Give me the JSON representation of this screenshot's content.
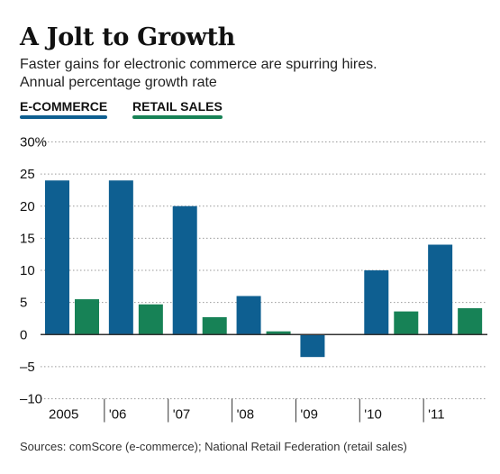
{
  "header": {
    "title": "A Jolt to Growth",
    "subtitle": "Faster gains for electronic commerce are spurring hires."
  },
  "source": "Sources: comScore (e-commerce); National Retail Federation (retail sales)",
  "colors": {
    "ecommerce": "#0e5f91",
    "retail_sales": "#178256",
    "gridline": "#9a9a9a",
    "zero_line": "#333333",
    "text": "#111111"
  },
  "chart_data": {
    "type": "bar",
    "title": "A Jolt to Growth",
    "subtitle": "Faster gains for electronic commerce are spurring hires.",
    "ylabel": "Annual percentage growth rate",
    "xlabel": "",
    "categories": [
      "2005",
      "'06",
      "'07",
      "'08",
      "'09",
      "'10",
      "'11"
    ],
    "series": [
      {
        "name": "E-COMMERCE",
        "values": [
          24,
          24,
          20,
          6,
          -3.5,
          10,
          14
        ]
      },
      {
        "name": "RETAIL SALES",
        "values": [
          5.5,
          4.7,
          2.7,
          0.5,
          null,
          3.6,
          4.1
        ]
      }
    ],
    "ylim": [
      -10,
      30
    ],
    "yticks": [
      -10,
      -5,
      0,
      5,
      10,
      15,
      20,
      25,
      30
    ],
    "ytick_labels": [
      "–10",
      "–5",
      "0",
      "5",
      "10",
      "15",
      "20",
      "25",
      "30%"
    ],
    "grid": true,
    "legend_position": "top-left"
  }
}
